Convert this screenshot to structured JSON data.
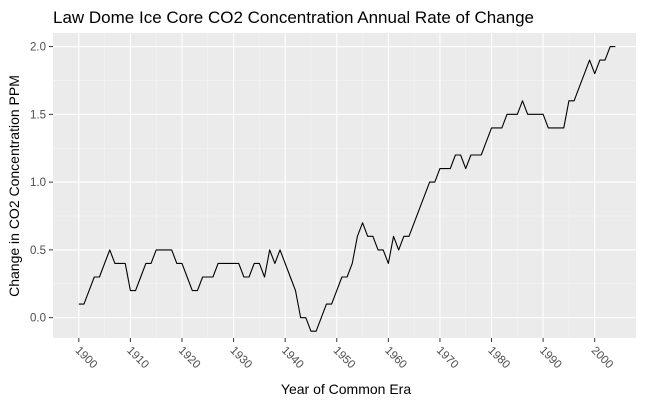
{
  "chart_data": {
    "type": "line",
    "title": "Law Dome Ice Core CO2 Concentration Annual Rate of Change",
    "xlabel": "Year of Common Era",
    "ylabel": "Change in CO2 Concentration PPM",
    "xlim": [
      1895,
      2008
    ],
    "ylim": [
      -0.15,
      2.1
    ],
    "x_ticks": [
      1900,
      1910,
      1920,
      1930,
      1940,
      1950,
      1960,
      1970,
      1980,
      1990,
      2000
    ],
    "x_tick_labels": [
      "1900",
      "1910",
      "1920",
      "1930",
      "1940",
      "1950",
      "1960",
      "1970",
      "1980",
      "1990",
      "2000"
    ],
    "y_ticks": [
      0.0,
      0.5,
      1.0,
      1.5,
      2.0
    ],
    "y_tick_labels": [
      "0.0",
      "0.5",
      "1.0",
      "1.5",
      "2.0"
    ],
    "grid": true,
    "background": "#ebebeb",
    "line_color": "#000000",
    "series": [
      {
        "x": [
          1900,
          1901,
          1902,
          1903,
          1904,
          1905,
          1906,
          1907,
          1908,
          1909,
          1910,
          1911,
          1912,
          1913,
          1914,
          1915,
          1916,
          1917,
          1918,
          1919,
          1920,
          1921,
          1922,
          1923,
          1924,
          1925,
          1926,
          1927,
          1928,
          1929,
          1930,
          1931,
          1932,
          1933,
          1934,
          1935,
          1936,
          1937,
          1938,
          1939,
          1940,
          1941,
          1942,
          1943,
          1944,
          1945,
          1946,
          1947,
          1948,
          1949,
          1950,
          1951,
          1952,
          1953,
          1954,
          1955,
          1956,
          1957,
          1958,
          1959,
          1960,
          1961,
          1962,
          1963,
          1964,
          1965,
          1966,
          1967,
          1968,
          1969,
          1970,
          1971,
          1972,
          1973,
          1974,
          1975,
          1976,
          1977,
          1978,
          1979,
          1980,
          1981,
          1982,
          1983,
          1984,
          1985,
          1986,
          1987,
          1988,
          1989,
          1990,
          1991,
          1992,
          1993,
          1994,
          1995,
          1996,
          1997,
          1998,
          1999,
          2000,
          2001,
          2002,
          2003,
          2004
        ],
        "y": [
          0.1,
          0.1,
          0.2,
          0.3,
          0.3,
          0.4,
          0.5,
          0.4,
          0.4,
          0.4,
          0.2,
          0.2,
          0.3,
          0.4,
          0.4,
          0.5,
          0.5,
          0.5,
          0.5,
          0.4,
          0.4,
          0.3,
          0.2,
          0.2,
          0.3,
          0.3,
          0.3,
          0.4,
          0.4,
          0.4,
          0.4,
          0.4,
          0.3,
          0.3,
          0.4,
          0.4,
          0.3,
          0.5,
          0.4,
          0.5,
          0.4,
          0.3,
          0.2,
          0.0,
          0.0,
          -0.1,
          -0.1,
          0.0,
          0.1,
          0.1,
          0.2,
          0.3,
          0.3,
          0.4,
          0.6,
          0.7,
          0.6,
          0.6,
          0.5,
          0.5,
          0.4,
          0.6,
          0.5,
          0.6,
          0.6,
          0.7,
          0.8,
          0.9,
          1.0,
          1.0,
          1.1,
          1.1,
          1.1,
          1.2,
          1.2,
          1.1,
          1.2,
          1.2,
          1.2,
          1.3,
          1.4,
          1.4,
          1.4,
          1.5,
          1.5,
          1.5,
          1.6,
          1.5,
          1.5,
          1.5,
          1.5,
          1.4,
          1.4,
          1.4,
          1.4,
          1.6,
          1.6,
          1.7,
          1.8,
          1.9,
          1.8,
          1.9,
          1.9,
          2.0,
          2.0
        ]
      }
    ]
  }
}
